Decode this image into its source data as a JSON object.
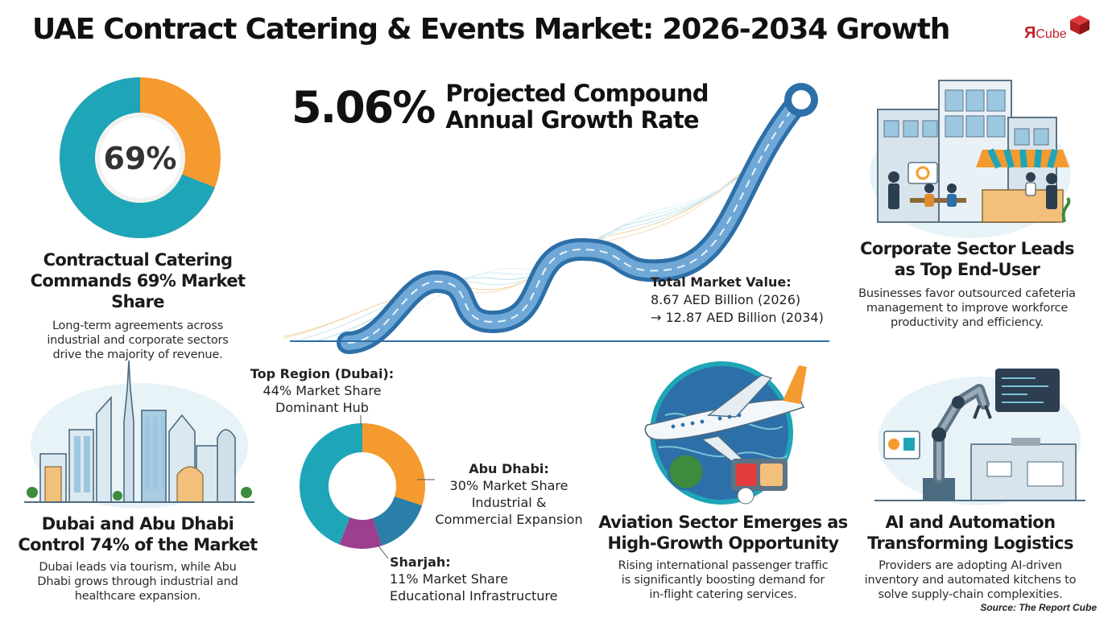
{
  "title": "UAE Contract Catering & Events Market: 2026-2034 Growth",
  "logo": {
    "mark": "Я",
    "text": "Cube"
  },
  "share": {
    "percent_label": "69%",
    "value": 69,
    "heading_lines": [
      "Contractual Catering",
      "Commands 69% Market Share"
    ],
    "desc_lines": [
      "Long-term agreements across",
      "industrial and corporate sectors",
      "drive the majority of revenue."
    ],
    "colors": {
      "primary": "#1fa5b8",
      "secondary": "#f59a2e"
    }
  },
  "cagr": {
    "value": "5.06%",
    "label_lines": [
      "Projected Compound",
      "Annual Growth Rate"
    ]
  },
  "market_value": {
    "label": "Total Market Value:",
    "line1": "8.67 AED Billion (2026)",
    "line2": "→ 12.87 AED Billion (2034)"
  },
  "corporate": {
    "heading_lines": [
      "Corporate Sector Leads",
      "as Top End-User"
    ],
    "desc_lines": [
      "Businesses favor outsourced cafeteria",
      "management to improve workforce",
      "productivity and efficiency."
    ]
  },
  "dubai": {
    "heading_lines": [
      "Dubai and Abu Dhabi",
      "Control 74% of the Market"
    ],
    "desc_lines": [
      "Dubai leads via tourism, while Abu",
      "Dhabi grows through industrial and",
      "healthcare expansion."
    ]
  },
  "regions": {
    "dubai": {
      "name": "Top Region (Dubai):",
      "share": "44% Market Share",
      "note": "Dominant Hub",
      "value": 44,
      "color": "#1fa5b8"
    },
    "abu_dhabi": {
      "name": "Abu Dhabi:",
      "share": "30% Market Share",
      "note_lines": [
        "Industrial &",
        "Commercial Expansion"
      ],
      "value": 30,
      "color": "#f59a2e"
    },
    "sharjah": {
      "name": "Sharjah:",
      "share": "11% Market Share",
      "note": "Educational Infrastructure",
      "value": 11,
      "color": "#9b3f8e"
    },
    "other_value": 15,
    "other_color": "#2a7fa8"
  },
  "aviation": {
    "heading_lines": [
      "Aviation Sector Emerges as",
      "High-Growth Opportunity"
    ],
    "desc_lines": [
      "Rising international passenger traffic",
      "is significantly boosting demand for",
      "in-flight catering services."
    ]
  },
  "ai": {
    "heading_lines": [
      "AI and Automation",
      "Transforming Logistics"
    ],
    "desc_lines": [
      "Providers are adopting AI-driven",
      "inventory and automated kitchens to",
      "solve supply-chain complexities."
    ]
  },
  "source": "Source: The Report Cube"
}
